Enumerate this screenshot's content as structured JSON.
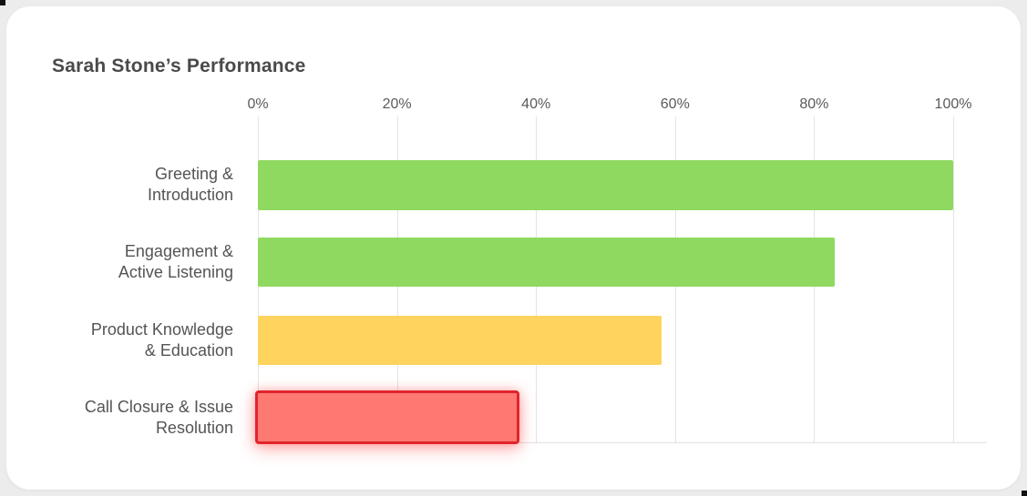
{
  "card": {
    "title": "Sarah Stone’s Performance"
  },
  "chart_data": {
    "type": "bar",
    "orientation": "horizontal",
    "title": "Sarah Stone’s Performance",
    "axis_position": "top",
    "grid": true,
    "xlim": [
      0,
      100
    ],
    "x_tick_labels": [
      "0%",
      "20%",
      "40%",
      "60%",
      "80%",
      "100%"
    ],
    "x_tick_values": [
      0,
      20,
      40,
      60,
      80,
      100
    ],
    "categories": [
      "Greeting & Introduction",
      "Engagement & Active Listening",
      "Product Knowledge & Education",
      "Call Closure & Issue Resolution"
    ],
    "values": [
      100,
      83,
      58,
      38
    ],
    "rows": [
      {
        "line1": "Greeting &",
        "line2": "Introduction",
        "value": 100,
        "color": "#8FD960"
      },
      {
        "line1": "Engagement &",
        "line2": "Active Listening",
        "value": 83,
        "color": "#8FD960"
      },
      {
        "line1": "Product Knowledge",
        "line2": "& Education",
        "value": 58,
        "color": "#FFD45E"
      },
      {
        "line1": "Call Closure & Issue",
        "line2": "Resolution",
        "value": 38,
        "color": "#FF7973",
        "border_color": "#E2242B",
        "highlighted": true
      }
    ],
    "colors": {
      "green": "#8FD960",
      "yellow": "#FFD45E",
      "red_fill": "#FF7973",
      "red_border": "#E2242B",
      "grid": "#E4E4E4",
      "title_text": "#4A4A4A",
      "label_text": "#545454",
      "page_background": "#ECECEC",
      "card_background": "#FFFFFF"
    }
  }
}
